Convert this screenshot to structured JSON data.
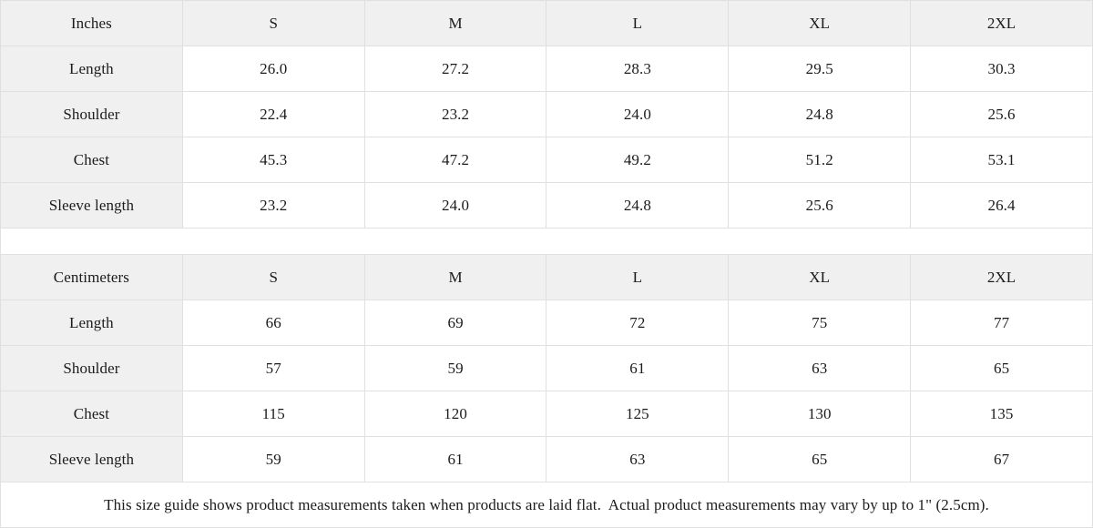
{
  "tables": [
    {
      "unit_label": "Inches",
      "sizes": [
        "S",
        "M",
        "L",
        "XL",
        "2XL"
      ],
      "rows": [
        {
          "label": "Length",
          "values": [
            "26.0",
            "27.2",
            "28.3",
            "29.5",
            "30.3"
          ]
        },
        {
          "label": "Shoulder",
          "values": [
            "22.4",
            "23.2",
            "24.0",
            "24.8",
            "25.6"
          ]
        },
        {
          "label": "Chest",
          "values": [
            "45.3",
            "47.2",
            "49.2",
            "51.2",
            "53.1"
          ]
        },
        {
          "label": "Sleeve length",
          "values": [
            "23.2",
            "24.0",
            "24.8",
            "25.6",
            "26.4"
          ]
        }
      ]
    },
    {
      "unit_label": "Centimeters",
      "sizes": [
        "S",
        "M",
        "L",
        "XL",
        "2XL"
      ],
      "rows": [
        {
          "label": "Length",
          "values": [
            "66",
            "69",
            "72",
            "75",
            "77"
          ]
        },
        {
          "label": "Shoulder",
          "values": [
            "57",
            "59",
            "61",
            "63",
            "65"
          ]
        },
        {
          "label": "Chest",
          "values": [
            "115",
            "120",
            "125",
            "130",
            "135"
          ]
        },
        {
          "label": "Sleeve length",
          "values": [
            "59",
            "61",
            "63",
            "65",
            "67"
          ]
        }
      ]
    }
  ],
  "footer_note": "This size guide shows product measurements taken when products are laid flat.  Actual product measurements may vary by up to 1\" (2.5cm).",
  "colors": {
    "header_bg": "#f0f0f0",
    "cell_bg": "#ffffff",
    "border": "#e0e0e0",
    "text": "#1b1b1b"
  }
}
